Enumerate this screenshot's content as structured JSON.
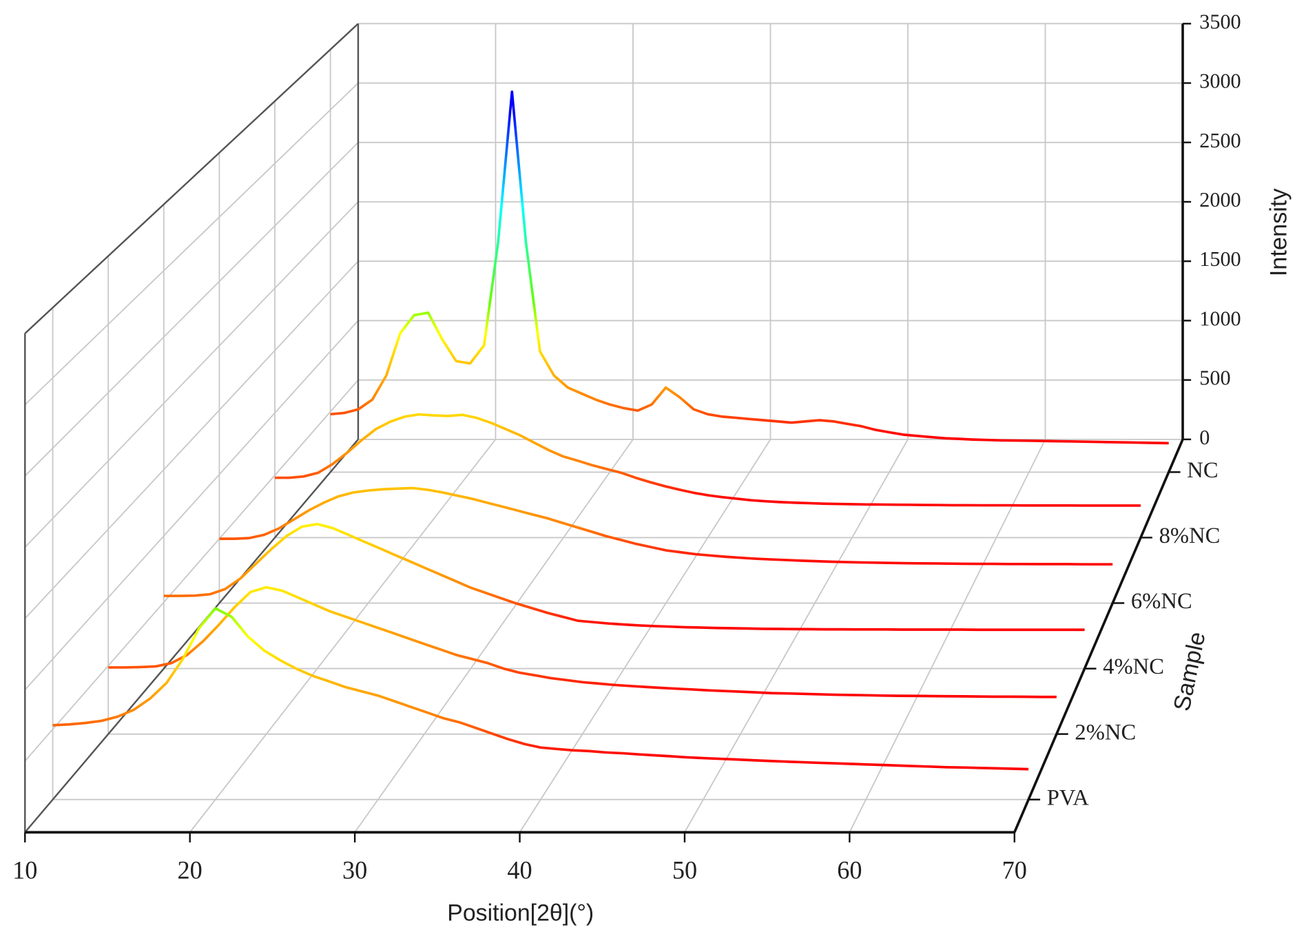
{
  "chart_data": {
    "type": "waterfall",
    "x_label": "Position[2θ](°)",
    "y_label": "Intensity",
    "depth_label": "Sample",
    "xlim": [
      10,
      70
    ],
    "xticks": [
      10,
      20,
      30,
      40,
      50,
      60,
      70
    ],
    "ylim": [
      0,
      3500
    ],
    "yticks": [
      0,
      500,
      1000,
      1500,
      2000,
      2500,
      3000,
      3500
    ],
    "grid": true,
    "colormap": [
      {
        "value": 300,
        "color": "#ff0000"
      },
      {
        "value": 600,
        "color": "#ff8000"
      },
      {
        "value": 1150,
        "color": "#ffff00"
      },
      {
        "value": 1400,
        "color": "#66ff00"
      },
      {
        "value": 2200,
        "color": "#00ffff"
      },
      {
        "value": 3000,
        "color": "#0000ff"
      }
    ],
    "x": [
      10,
      11,
      12,
      13,
      14,
      15,
      16,
      17,
      18,
      19,
      20,
      21,
      22,
      23,
      24,
      25,
      26,
      27,
      28,
      29,
      30,
      31,
      32,
      33,
      34,
      35,
      36,
      37,
      38,
      39,
      40,
      41,
      42,
      43,
      44,
      45,
      46,
      47,
      48,
      49,
      50,
      51,
      52,
      53,
      54,
      55,
      56,
      57,
      58,
      59,
      60,
      61,
      62,
      63,
      64,
      65,
      66,
      67,
      68,
      69,
      70
    ],
    "series": [
      {
        "name": "PVA",
        "values": [
          529,
          535,
          545,
          560,
          590,
          640,
          720,
          830,
          1000,
          1220,
          1360,
          1300,
          1160,
          1060,
          990,
          930,
          880,
          840,
          800,
          770,
          740,
          700,
          660,
          620,
          580,
          550,
          510,
          470,
          430,
          395,
          370,
          360,
          350,
          345,
          335,
          330,
          322,
          315,
          308,
          300,
          295,
          290,
          285,
          280,
          275,
          270,
          266,
          262,
          258,
          254,
          250,
          246,
          242,
          238,
          234,
          230,
          228,
          225,
          222,
          219,
          216
        ]
      },
      {
        "name": "2%NC",
        "values": [
          488,
          488,
          490,
          495,
          520,
          580,
          680,
          800,
          930,
          1040,
          1075,
          1050,
          1000,
          950,
          900,
          860,
          820,
          780,
          740,
          700,
          660,
          620,
          580,
          550,
          520,
          480,
          450,
          430,
          410,
          395,
          380,
          370,
          360,
          352,
          345,
          338,
          332,
          326,
          320,
          315,
          310,
          305,
          300,
          297,
          294,
          291,
          288,
          286,
          284,
          282,
          280,
          279,
          278,
          277,
          276,
          275,
          274,
          274,
          273,
          272,
          272
        ]
      },
      {
        "name": "4%NC",
        "values": [
          548,
          548,
          550,
          560,
          600,
          680,
          790,
          900,
          1000,
          1070,
          1090,
          1060,
          1010,
          960,
          910,
          860,
          810,
          760,
          710,
          660,
          610,
          570,
          530,
          490,
          455,
          420,
          390,
          360,
          350,
          340,
          332,
          325,
          320,
          316,
          312,
          309,
          306,
          304,
          302,
          300,
          299,
          298,
          297,
          296,
          296,
          295,
          295,
          295,
          294,
          294,
          294,
          294,
          294,
          293,
          293,
          293,
          293,
          293,
          293,
          293,
          293
        ]
      },
      {
        "name": "6%NC",
        "values": [
          500,
          500,
          505,
          530,
          580,
          650,
          720,
          780,
          830,
          860,
          875,
          885,
          890,
          894,
          880,
          860,
          835,
          810,
          780,
          750,
          720,
          690,
          660,
          625,
          590,
          555,
          520,
          490,
          460,
          435,
          410,
          395,
          380,
          370,
          360,
          352,
          345,
          340,
          335,
          330,
          326,
          322,
          319,
          316,
          314,
          312,
          310,
          309,
          308,
          307,
          306,
          305,
          305,
          304,
          304,
          303,
          303,
          303,
          302,
          302,
          302
        ]
      },
      {
        "name": "8%NC",
        "values": [
          480,
          480,
          490,
          520,
          590,
          680,
          780,
          870,
          930,
          970,
          988,
          980,
          975,
          985,
          960,
          920,
          870,
          820,
          760,
          700,
          650,
          616,
          580,
          550,
          520,
          480,
          445,
          413,
          385,
          360,
          340,
          325,
          312,
          300,
          292,
          285,
          280,
          276,
          272,
          270,
          268,
          266,
          265,
          264,
          263,
          262,
          261,
          260,
          260,
          259,
          259,
          259,
          258,
          258,
          258,
          258,
          257,
          257,
          257,
          257,
          257
        ]
      },
      {
        "name": "NC",
        "values": [
          480,
          490,
          520,
          600,
          800,
          1150,
          1300,
          1320,
          1100,
          920,
          900,
          1050,
          1900,
          3150,
          1900,
          1000,
          800,
          700,
          650,
          600,
          560,
          530,
          510,
          560,
          700,
          620,
          520,
          480,
          460,
          450,
          440,
          430,
          420,
          410,
          420,
          430,
          420,
          400,
          380,
          350,
          330,
          310,
          300,
          290,
          280,
          275,
          270,
          266,
          263,
          261,
          260,
          258,
          256,
          254,
          252,
          250,
          248,
          246,
          244,
          242,
          240
        ]
      }
    ]
  }
}
